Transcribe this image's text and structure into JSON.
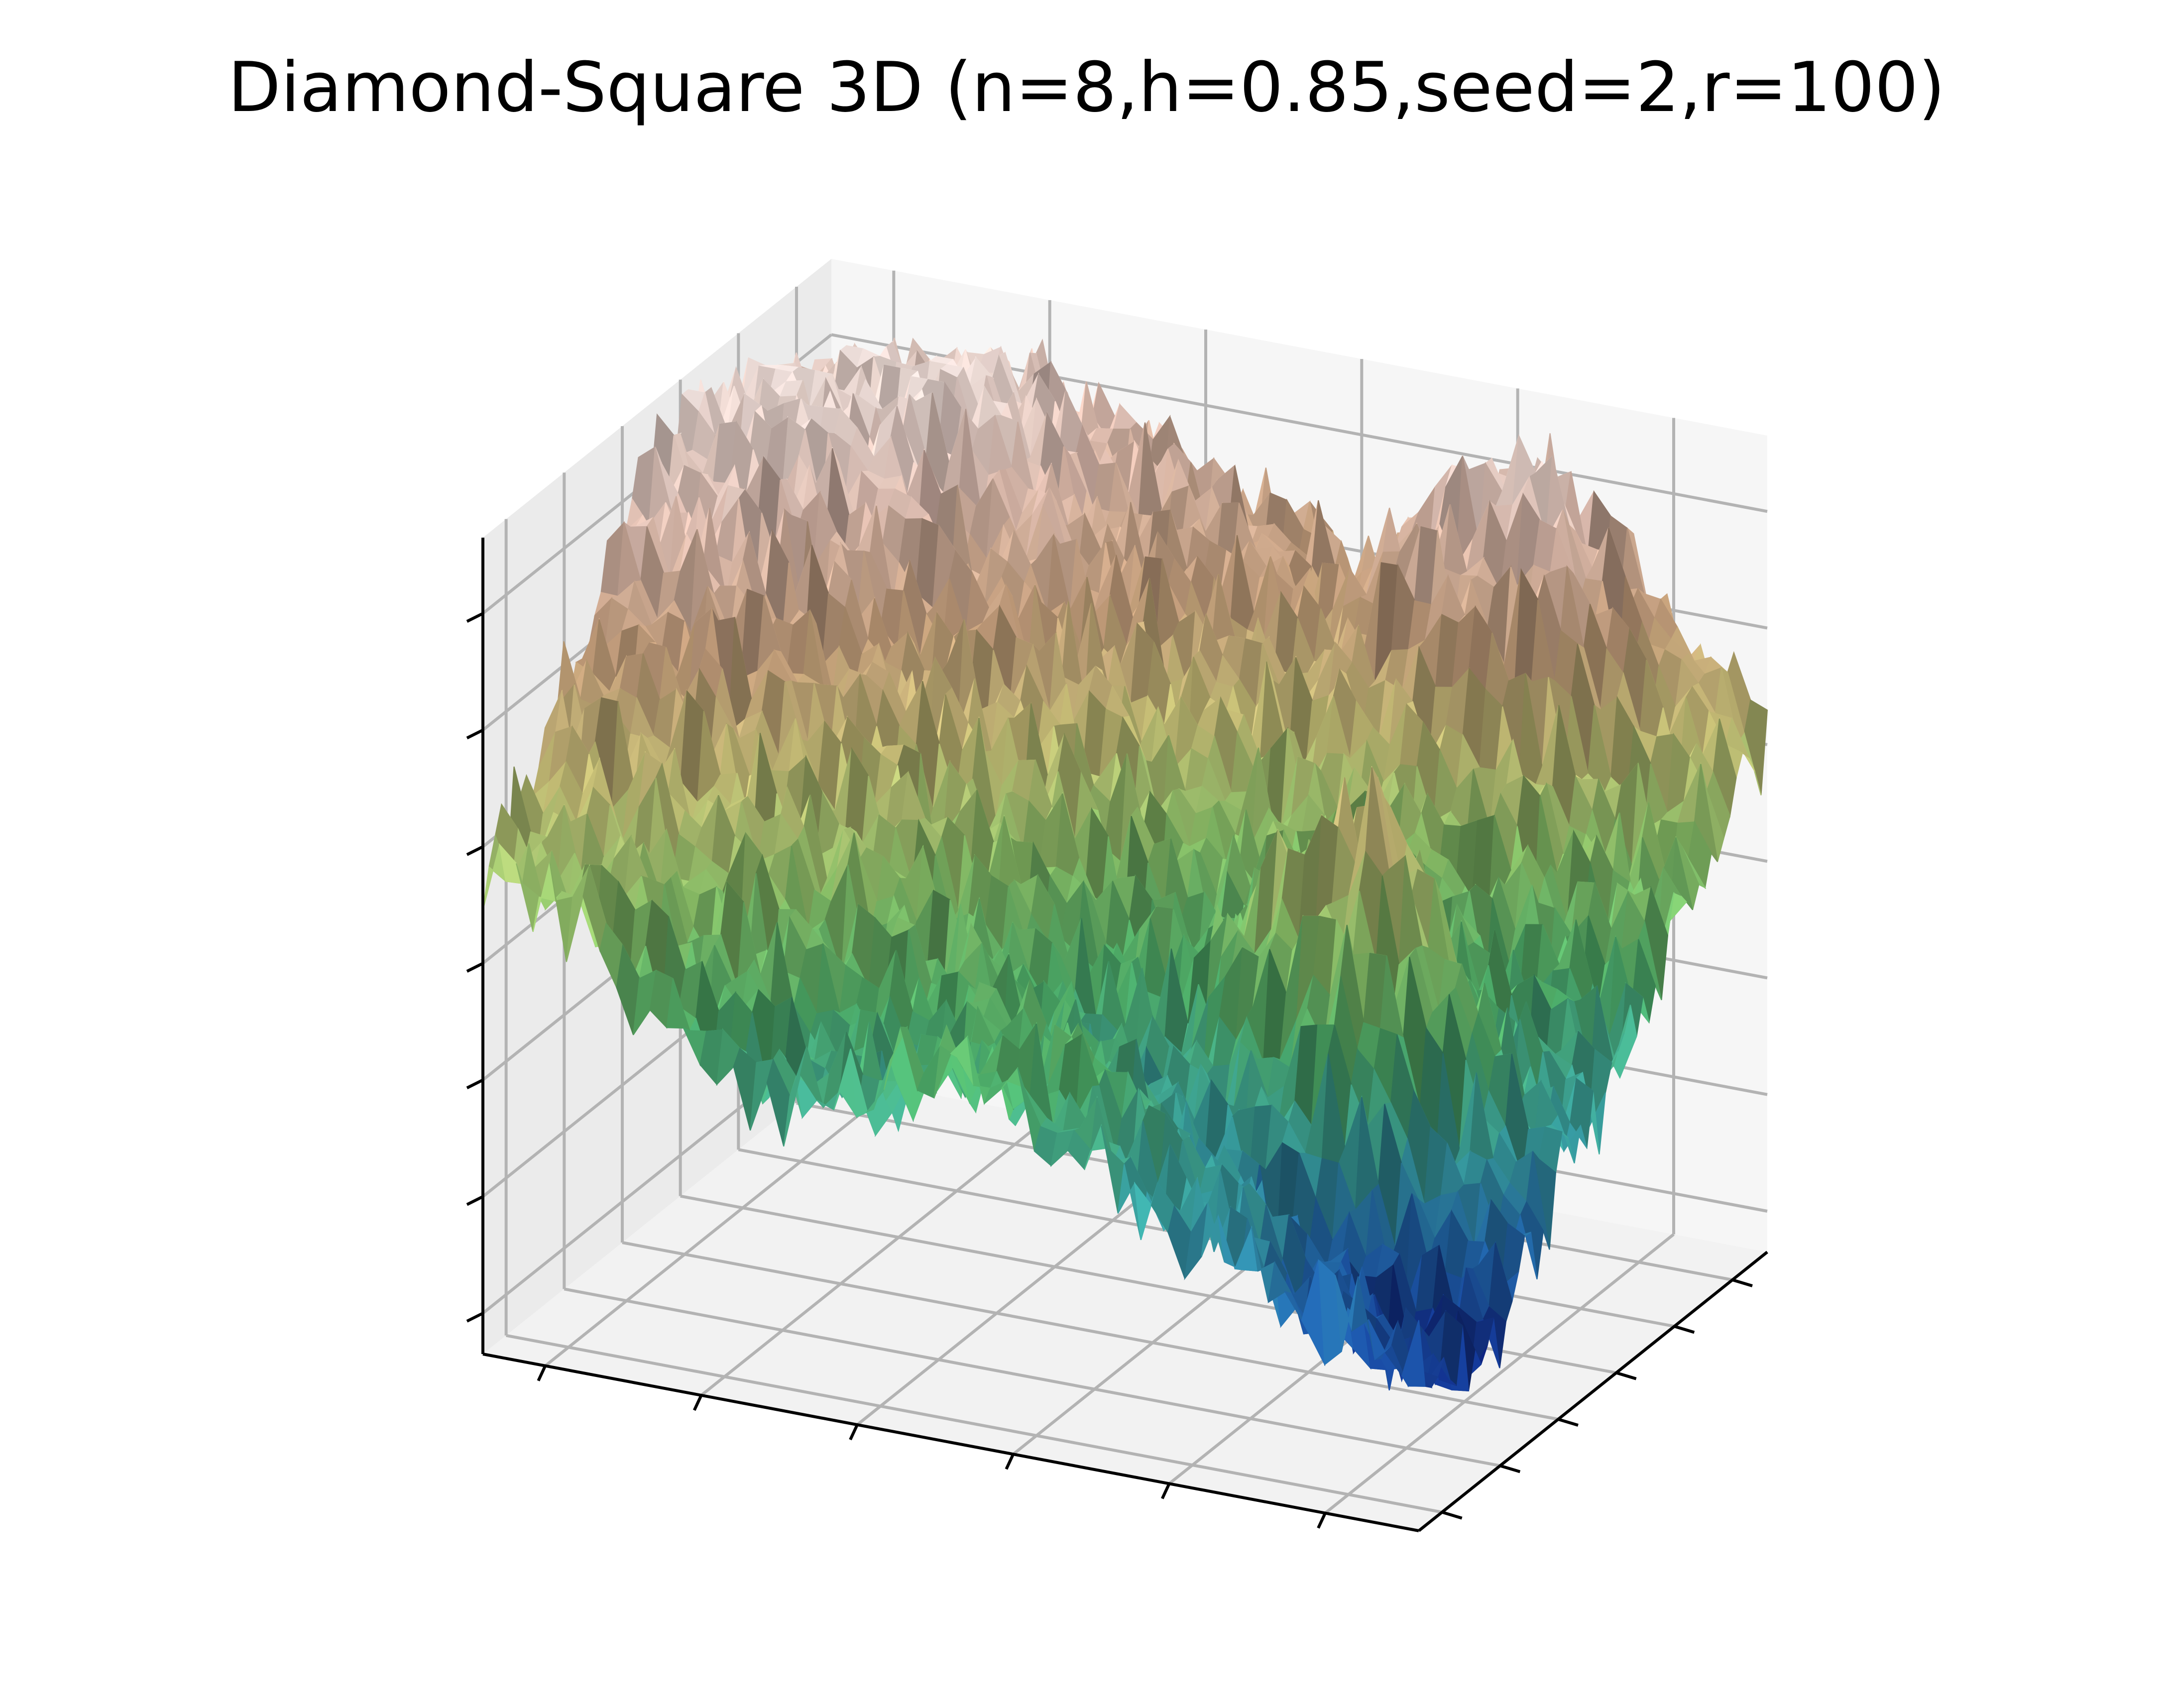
{
  "chart_data": {
    "type": "surface3d",
    "title": "Diamond-Square 3D (n=8,h=0.85,seed=2,r=100)",
    "xlabel": "",
    "ylabel": "",
    "zlabel": "",
    "tick_labels_shown": false,
    "x_tick_count": 6,
    "y_tick_count": 6,
    "z_tick_count": 7,
    "grid": true,
    "colormap": "gist_earth",
    "colormap_stops": [
      "#0b1a7a",
      "#1f5fa6",
      "#3aa3a0",
      "#4fb06a",
      "#8dc46a",
      "#cdc57a",
      "#c9a27e",
      "#e6c3b5",
      "#f7e8e4"
    ],
    "pane_color": "#f2f2f2",
    "grid_color": "#b3b3b3",
    "x": [
      0,
      0.1,
      0.2,
      0.3,
      0.4,
      0.5,
      0.6,
      0.7,
      0.8,
      0.9,
      1.0
    ],
    "y": [
      0,
      0.1,
      0.2,
      0.3,
      0.4,
      0.5,
      0.6,
      0.7,
      0.8,
      0.9,
      1.0
    ],
    "z": [
      [
        0.55,
        0.5,
        0.4,
        0.3,
        0.35,
        0.4,
        0.35,
        0.25,
        0.2,
        0.15,
        0.12
      ],
      [
        0.6,
        0.55,
        0.45,
        0.35,
        0.3,
        0.35,
        0.4,
        0.3,
        0.2,
        0.1,
        0.05
      ],
      [
        0.7,
        0.65,
        0.55,
        0.45,
        0.4,
        0.4,
        0.35,
        0.2,
        0.1,
        0.02,
        0.0
      ],
      [
        0.8,
        0.75,
        0.65,
        0.55,
        0.45,
        0.35,
        0.25,
        0.3,
        0.45,
        0.2,
        0.15
      ],
      [
        0.9,
        0.85,
        0.75,
        0.6,
        0.5,
        0.4,
        0.35,
        0.55,
        0.7,
        0.4,
        0.2
      ],
      [
        0.95,
        0.9,
        0.8,
        0.7,
        0.6,
        0.45,
        0.4,
        0.5,
        0.55,
        0.35,
        0.25
      ],
      [
        1.0,
        0.95,
        0.9,
        0.8,
        0.7,
        0.55,
        0.5,
        0.45,
        0.4,
        0.35,
        0.3
      ],
      [
        0.95,
        1.0,
        0.95,
        0.85,
        0.75,
        0.65,
        0.6,
        0.55,
        0.5,
        0.45,
        0.4
      ],
      [
        0.9,
        0.95,
        1.0,
        0.9,
        0.8,
        0.75,
        0.7,
        0.8,
        0.75,
        0.55,
        0.45
      ],
      [
        0.85,
        0.9,
        0.95,
        0.9,
        0.85,
        0.8,
        0.75,
        0.9,
        0.95,
        0.7,
        0.55
      ],
      [
        0.8,
        0.85,
        0.9,
        0.85,
        0.8,
        0.75,
        0.7,
        0.85,
        0.9,
        0.75,
        0.6
      ]
    ]
  }
}
